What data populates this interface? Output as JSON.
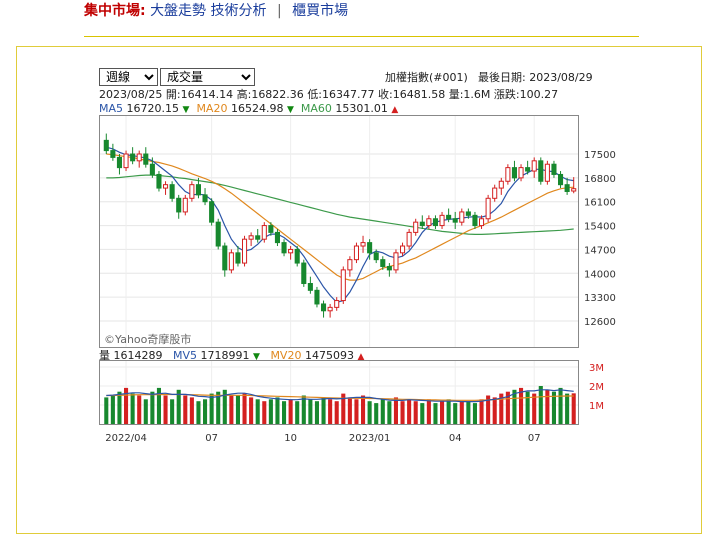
{
  "nav": {
    "section": "集中市場:",
    "link1": "大盤走勢",
    "link2": "技術分析",
    "separator": "|",
    "link3": "櫃買市場"
  },
  "controls": {
    "period_value": "週線",
    "indicator_value": "成交量"
  },
  "index_name": "加權指數(#001)",
  "last_date_label": "最後日期: 2023/08/29",
  "quote": {
    "date": "2023/08/25",
    "open": "開:16414.14",
    "high": "高:16822.36",
    "low": "低:16347.77",
    "close": "收:16481.58",
    "volume": "量:1.6M",
    "change": "漲跌:100.27"
  },
  "ma_legend": {
    "ma5_label": "MA5",
    "ma5_value": "16720.15",
    "ma20_label": "MA20",
    "ma20_value": "16524.98",
    "ma60_label": "MA60",
    "ma60_value": "15301.01"
  },
  "vol_legend": {
    "vol_label": "量",
    "vol_value": "1614289",
    "mv5_label": "MV5",
    "mv5_value": "1718991",
    "mv20_label": "MV20",
    "mv20_value": "1475093"
  },
  "watermark": "©Yahoo奇摩股市",
  "colors": {
    "up": "#d42020",
    "down": "#17882e",
    "ma5": "#2b55a8",
    "ma20": "#e0881e",
    "ma60": "#3c9a4a",
    "mv5": "#2b55a8",
    "mv20": "#e0881e"
  },
  "chart_data": {
    "type": "candlestick",
    "price_ticks": [
      12600,
      13300,
      14000,
      14700,
      15400,
      16100,
      16800,
      17500
    ],
    "volume_ticks": [
      "1M",
      "2M",
      "3M"
    ],
    "x_labels": [
      "2022/04",
      "07",
      "10",
      "2023/01",
      "04",
      "07"
    ],
    "candles": [
      [
        17900,
        18100,
        17500,
        17600
      ],
      [
        17600,
        17800,
        17300,
        17400
      ],
      [
        17400,
        17500,
        16900,
        17100
      ],
      [
        17100,
        17600,
        17000,
        17500
      ],
      [
        17500,
        17700,
        17200,
        17300
      ],
      [
        17300,
        17600,
        17100,
        17500
      ],
      [
        17500,
        17700,
        17100,
        17200
      ],
      [
        17200,
        17400,
        16800,
        16900
      ],
      [
        16900,
        17000,
        16400,
        16500
      ],
      [
        16500,
        16700,
        16300,
        16600
      ],
      [
        16600,
        16700,
        16100,
        16200
      ],
      [
        16200,
        16300,
        15600,
        15800
      ],
      [
        15800,
        16300,
        15700,
        16200
      ],
      [
        16200,
        16700,
        16100,
        16600
      ],
      [
        16600,
        16800,
        16200,
        16300
      ],
      [
        16300,
        16500,
        16000,
        16100
      ],
      [
        16100,
        16200,
        15400,
        15500
      ],
      [
        15500,
        15600,
        14700,
        14800
      ],
      [
        14800,
        14900,
        13900,
        14100
      ],
      [
        14100,
        14700,
        14000,
        14600
      ],
      [
        14600,
        14800,
        14200,
        14300
      ],
      [
        14300,
        15100,
        14200,
        15000
      ],
      [
        15000,
        15200,
        14800,
        15100
      ],
      [
        15100,
        15300,
        14900,
        15000
      ],
      [
        15000,
        15500,
        14900,
        15400
      ],
      [
        15400,
        15500,
        15100,
        15200
      ],
      [
        15200,
        15300,
        14800,
        14900
      ],
      [
        14900,
        15000,
        14500,
        14600
      ],
      [
        14600,
        14800,
        14400,
        14700
      ],
      [
        14700,
        14800,
        14200,
        14300
      ],
      [
        14300,
        14400,
        13600,
        13700
      ],
      [
        13700,
        13900,
        13400,
        13500
      ],
      [
        13500,
        13600,
        13000,
        13100
      ],
      [
        13100,
        13200,
        12700,
        12900
      ],
      [
        12900,
        13100,
        12700,
        13000
      ],
      [
        13000,
        13300,
        12900,
        13200
      ],
      [
        13200,
        14200,
        13100,
        14100
      ],
      [
        14100,
        14500,
        13900,
        14400
      ],
      [
        14400,
        14900,
        14300,
        14800
      ],
      [
        14800,
        15100,
        14600,
        14900
      ],
      [
        14900,
        15000,
        14400,
        14600
      ],
      [
        14600,
        14700,
        14300,
        14400
      ],
      [
        14400,
        14500,
        14100,
        14200
      ],
      [
        14200,
        14300,
        13900,
        14100
      ],
      [
        14100,
        14700,
        14000,
        14600
      ],
      [
        14600,
        14900,
        14500,
        14800
      ],
      [
        14800,
        15300,
        14700,
        15200
      ],
      [
        15200,
        15600,
        15100,
        15500
      ],
      [
        15500,
        15700,
        15300,
        15400
      ],
      [
        15400,
        15700,
        15300,
        15600
      ],
      [
        15600,
        15700,
        15300,
        15400
      ],
      [
        15400,
        15800,
        15300,
        15700
      ],
      [
        15700,
        15900,
        15500,
        15600
      ],
      [
        15600,
        15800,
        15300,
        15500
      ],
      [
        15500,
        15900,
        15400,
        15800
      ],
      [
        15800,
        15900,
        15600,
        15700
      ],
      [
        15700,
        15800,
        15300,
        15400
      ],
      [
        15400,
        15700,
        15300,
        15600
      ],
      [
        15600,
        16300,
        15500,
        16200
      ],
      [
        16200,
        16600,
        16100,
        16500
      ],
      [
        16500,
        16800,
        16300,
        16700
      ],
      [
        16700,
        17200,
        16600,
        17100
      ],
      [
        17100,
        17300,
        16700,
        16800
      ],
      [
        16800,
        17200,
        16700,
        17100
      ],
      [
        17100,
        17300,
        16900,
        17000
      ],
      [
        17000,
        17400,
        16800,
        17300
      ],
      [
        17300,
        17400,
        16600,
        16700
      ],
      [
        16700,
        17300,
        16600,
        17200
      ],
      [
        17200,
        17300,
        16800,
        16900
      ],
      [
        16900,
        17000,
        16500,
        16600
      ],
      [
        16600,
        16800,
        16300,
        16400
      ],
      [
        16414,
        16822,
        16348,
        16482
      ]
    ],
    "ma5": [
      17700,
      17650,
      17550,
      17480,
      17450,
      17420,
      17380,
      17300,
      17150,
      17000,
      16850,
      16600,
      16400,
      16300,
      16320,
      16300,
      16150,
      15850,
      15400,
      15000,
      14750,
      14650,
      14700,
      14850,
      15050,
      15150,
      15150,
      15050,
      14900,
      14750,
      14500,
      14200,
      13900,
      13600,
      13350,
      13150,
      13200,
      13450,
      13800,
      14200,
      14550,
      14650,
      14600,
      14500,
      14450,
      14500,
      14650,
      14900,
      15200,
      15400,
      15500,
      15550,
      15580,
      15600,
      15620,
      15650,
      15660,
      15650,
      15700,
      15850,
      16050,
      16400,
      16650,
      16850,
      16950,
      17050,
      17050,
      17000,
      16980,
      16850,
      16750,
      16720
    ],
    "ma20": [
      17500,
      17480,
      17450,
      17420,
      17400,
      17350,
      17320,
      17280,
      17250,
      17200,
      17150,
      17080,
      17000,
      16920,
      16850,
      16780,
      16700,
      16600,
      16480,
      16350,
      16200,
      16050,
      15900,
      15750,
      15600,
      15450,
      15300,
      15150,
      15000,
      14850,
      14700,
      14550,
      14400,
      14250,
      14100,
      13950,
      13850,
      13800,
      13800,
      13850,
      13950,
      14050,
      14150,
      14200,
      14250,
      14300,
      14380,
      14450,
      14550,
      14650,
      14750,
      14850,
      14950,
      15050,
      15150,
      15250,
      15330,
      15400,
      15480,
      15560,
      15650,
      15750,
      15850,
      15950,
      16050,
      16150,
      16250,
      16350,
      16420,
      16480,
      16510,
      16525
    ],
    "ma60": [
      16800,
      16800,
      16810,
      16830,
      16850,
      16870,
      16880,
      16880,
      16870,
      16850,
      16830,
      16800,
      16780,
      16750,
      16720,
      16690,
      16660,
      16620,
      16580,
      16530,
      16480,
      16430,
      16380,
      16330,
      16280,
      16230,
      16180,
      16130,
      16080,
      16030,
      15980,
      15930,
      15880,
      15830,
      15780,
      15730,
      15690,
      15650,
      15620,
      15590,
      15560,
      15530,
      15500,
      15470,
      15440,
      15410,
      15380,
      15350,
      15320,
      15290,
      15260,
      15230,
      15210,
      15190,
      15170,
      15150,
      15140,
      15140,
      15150,
      15160,
      15170,
      15180,
      15190,
      15200,
      15210,
      15220,
      15230,
      15240,
      15250,
      15260,
      15280,
      15300
    ],
    "volumes": [
      1400000,
      1500000,
      1700000,
      1900000,
      1600000,
      1500000,
      1300000,
      1700000,
      1900000,
      1500000,
      1300000,
      1800000,
      1500000,
      1400000,
      1200000,
      1300000,
      1600000,
      1700000,
      1800000,
      1500000,
      1500000,
      1600000,
      1400000,
      1300000,
      1200000,
      1300000,
      1400000,
      1200000,
      1300000,
      1200000,
      1500000,
      1300000,
      1200000,
      1400000,
      1300000,
      1200000,
      1600000,
      1400000,
      1300000,
      1500000,
      1200000,
      1100000,
      1300000,
      1200000,
      1400000,
      1200000,
      1300000,
      1200000,
      1100000,
      1300000,
      1100000,
      1200000,
      1300000,
      1100000,
      1200000,
      1200000,
      1100000,
      1300000,
      1500000,
      1400000,
      1600000,
      1700000,
      1800000,
      1900000,
      1700000,
      1600000,
      2000000,
      1800000,
      1700000,
      1900000,
      1600000,
      1614289
    ],
    "mv5": [
      1500000,
      1520000,
      1560000,
      1600000,
      1640000,
      1640000,
      1600000,
      1560000,
      1600000,
      1620000,
      1560000,
      1560000,
      1560000,
      1520000,
      1460000,
      1440000,
      1400000,
      1440000,
      1520000,
      1580000,
      1620000,
      1620000,
      1560000,
      1460000,
      1400000,
      1360000,
      1320000,
      1300000,
      1280000,
      1280000,
      1320000,
      1300000,
      1300000,
      1320000,
      1340000,
      1320000,
      1340000,
      1380000,
      1400000,
      1400000,
      1400000,
      1340000,
      1300000,
      1260000,
      1240000,
      1240000,
      1280000,
      1260000,
      1240000,
      1220000,
      1200000,
      1200000,
      1200000,
      1200000,
      1180000,
      1180000,
      1180000,
      1200000,
      1260000,
      1300000,
      1360000,
      1440000,
      1600000,
      1680000,
      1740000,
      1740000,
      1800000,
      1800000,
      1760000,
      1800000,
      1760000,
      1718991
    ],
    "mv20": [
      1500000,
      1500000,
      1510000,
      1520000,
      1530000,
      1540000,
      1540000,
      1540000,
      1540000,
      1550000,
      1550000,
      1550000,
      1550000,
      1540000,
      1530000,
      1520000,
      1510000,
      1510000,
      1510000,
      1510000,
      1510000,
      1510000,
      1500000,
      1490000,
      1480000,
      1470000,
      1460000,
      1450000,
      1440000,
      1430000,
      1420000,
      1410000,
      1400000,
      1390000,
      1380000,
      1370000,
      1360000,
      1350000,
      1350000,
      1350000,
      1340000,
      1340000,
      1330000,
      1320000,
      1310000,
      1300000,
      1300000,
      1290000,
      1280000,
      1270000,
      1270000,
      1260000,
      1260000,
      1250000,
      1250000,
      1250000,
      1250000,
      1260000,
      1270000,
      1290000,
      1310000,
      1330000,
      1350000,
      1370000,
      1390000,
      1410000,
      1430000,
      1450000,
      1460000,
      1470000,
      1472000,
      1475093
    ]
  }
}
